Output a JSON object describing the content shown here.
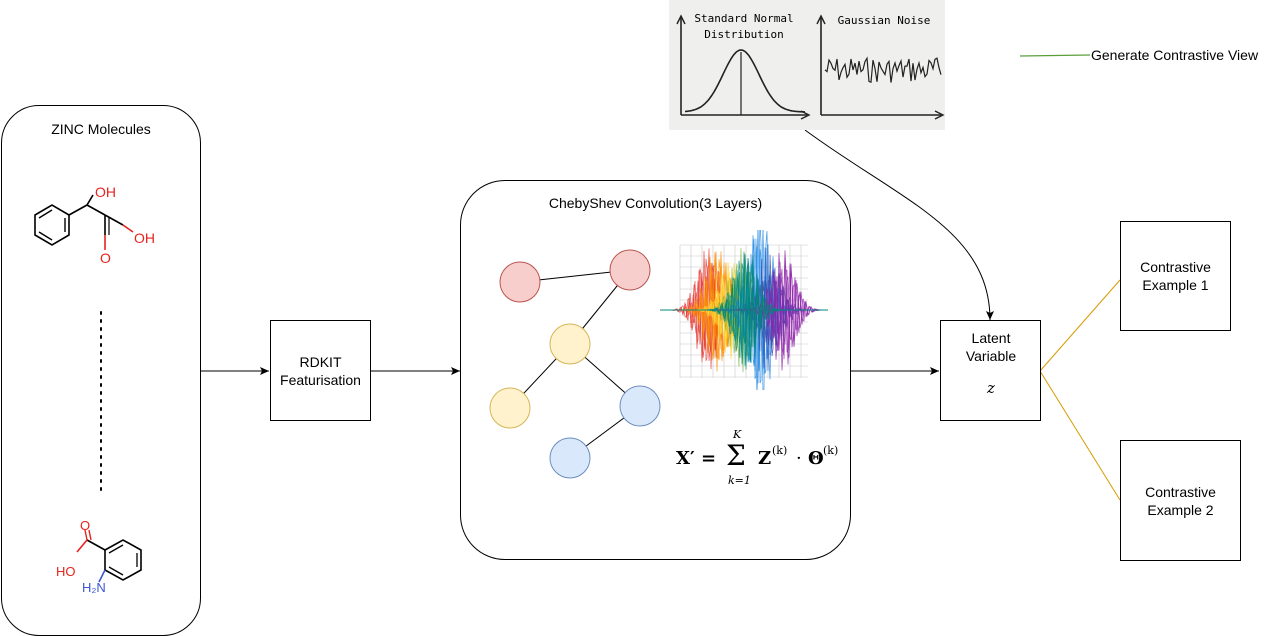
{
  "zinc": {
    "title": "ZINC Molecules",
    "mol1": {
      "oh1": "OH",
      "oh2": "OH",
      "o": "O"
    },
    "mol2": {
      "ho": "HO",
      "o": "O",
      "h2n": "H₂N"
    }
  },
  "rdkit": {
    "line1": "RDKIT",
    "line2": "Featurisation"
  },
  "cheb": {
    "title": "ChebyShev Convolution(3 Layers)"
  },
  "formula": {
    "lhs": "X′ =",
    "sum_top": "K",
    "sum_bottom": "k=1",
    "term1": "Z",
    "sup1": "(k)",
    "dot": "·",
    "term2": "Θ",
    "sup2": "(k)"
  },
  "latent": {
    "line1": "Latent",
    "line2": "Variable",
    "symbol": "z"
  },
  "noise_panel": {
    "left_title_1": "Standard Normal",
    "left_title_2": "Distribution",
    "right_title": "Gaussian Noise"
  },
  "legend": {
    "label": "Generate Contrastive View",
    "color": "#5a9e3a"
  },
  "contrastive": [
    {
      "line1": "Contrastive",
      "line2": "Example 1"
    },
    {
      "line1": "Contrastive",
      "line2": "Example 2"
    }
  ],
  "colors": {
    "node_red": "#f8cecc",
    "node_red_stroke": "#b85450",
    "node_yellow": "#fff2cc",
    "node_yellow_stroke": "#d6b656",
    "node_blue": "#dae8fc",
    "node_blue_stroke": "#6c8ebf",
    "gold_line": "#d79b00",
    "hetero_red": "#e6231e",
    "hetero_blue": "#3b56d6"
  }
}
